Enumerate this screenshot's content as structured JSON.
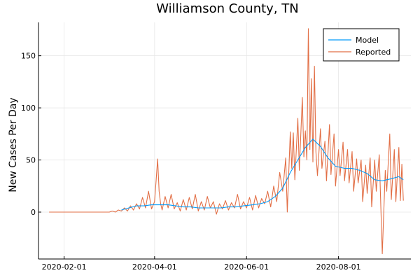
{
  "chart_data": {
    "type": "line",
    "title": "Williamson County, TN",
    "xlabel": "",
    "ylabel": "New Cases Per Day",
    "x_axis": "date",
    "xlim": [
      "2020-01-15",
      "2020-09-18"
    ],
    "ylim": [
      -45,
      182
    ],
    "x_ticks": [
      "2020-02-01",
      "2020-04-01",
      "2020-06-01",
      "2020-08-01"
    ],
    "y_ticks": [
      0,
      50,
      100,
      150
    ],
    "grid": true,
    "legend_position": "top-right",
    "colors": {
      "model": "#009AFA",
      "reported": "#E26F46"
    },
    "series": [
      {
        "name": "Model",
        "color": "#009AFA",
        "points": [
          [
            "2020-03-10",
            2
          ],
          [
            "2020-03-15",
            4
          ],
          [
            "2020-03-20",
            6
          ],
          [
            "2020-03-25",
            6
          ],
          [
            "2020-03-30",
            7
          ],
          [
            "2020-04-05",
            7
          ],
          [
            "2020-04-10",
            7
          ],
          [
            "2020-04-15",
            6
          ],
          [
            "2020-04-20",
            5
          ],
          [
            "2020-04-25",
            5
          ],
          [
            "2020-04-30",
            4
          ],
          [
            "2020-05-05",
            4
          ],
          [
            "2020-05-10",
            4
          ],
          [
            "2020-05-15",
            4
          ],
          [
            "2020-05-20",
            5
          ],
          [
            "2020-05-25",
            5
          ],
          [
            "2020-05-30",
            6
          ],
          [
            "2020-06-05",
            7
          ],
          [
            "2020-06-10",
            8
          ],
          [
            "2020-06-15",
            10
          ],
          [
            "2020-06-20",
            15
          ],
          [
            "2020-06-25",
            23
          ],
          [
            "2020-06-30",
            38
          ],
          [
            "2020-07-05",
            50
          ],
          [
            "2020-07-10",
            62
          ],
          [
            "2020-07-15",
            70
          ],
          [
            "2020-07-20",
            63
          ],
          [
            "2020-07-25",
            52
          ],
          [
            "2020-07-30",
            44
          ],
          [
            "2020-08-05",
            42
          ],
          [
            "2020-08-10",
            42
          ],
          [
            "2020-08-15",
            40
          ],
          [
            "2020-08-20",
            37
          ],
          [
            "2020-08-25",
            31
          ],
          [
            "2020-08-30",
            30
          ],
          [
            "2020-09-05",
            32
          ],
          [
            "2020-09-10",
            34
          ],
          [
            "2020-09-13",
            31
          ]
        ]
      },
      {
        "name": "Reported",
        "color": "#E26F46",
        "points": [
          [
            "2020-01-22",
            0
          ],
          [
            "2020-02-05",
            0
          ],
          [
            "2020-02-20",
            0
          ],
          [
            "2020-03-02",
            0
          ],
          [
            "2020-03-04",
            1
          ],
          [
            "2020-03-06",
            0
          ],
          [
            "2020-03-08",
            2
          ],
          [
            "2020-03-10",
            1
          ],
          [
            "2020-03-12",
            4
          ],
          [
            "2020-03-14",
            1
          ],
          [
            "2020-03-16",
            6
          ],
          [
            "2020-03-18",
            2
          ],
          [
            "2020-03-20",
            8
          ],
          [
            "2020-03-22",
            3
          ],
          [
            "2020-03-24",
            14
          ],
          [
            "2020-03-26",
            4
          ],
          [
            "2020-03-28",
            20
          ],
          [
            "2020-03-30",
            3
          ],
          [
            "2020-04-01",
            10
          ],
          [
            "2020-04-02",
            30
          ],
          [
            "2020-04-03",
            51
          ],
          [
            "2020-04-04",
            20
          ],
          [
            "2020-04-05",
            8
          ],
          [
            "2020-04-06",
            2
          ],
          [
            "2020-04-08",
            15
          ],
          [
            "2020-04-10",
            4
          ],
          [
            "2020-04-12",
            17
          ],
          [
            "2020-04-14",
            3
          ],
          [
            "2020-04-16",
            9
          ],
          [
            "2020-04-18",
            1
          ],
          [
            "2020-04-20",
            12
          ],
          [
            "2020-04-22",
            2
          ],
          [
            "2020-04-24",
            14
          ],
          [
            "2020-04-26",
            3
          ],
          [
            "2020-04-28",
            17
          ],
          [
            "2020-04-30",
            1
          ],
          [
            "2020-05-02",
            10
          ],
          [
            "2020-05-04",
            2
          ],
          [
            "2020-05-06",
            15
          ],
          [
            "2020-05-08",
            4
          ],
          [
            "2020-05-10",
            10
          ],
          [
            "2020-05-12",
            -2
          ],
          [
            "2020-05-14",
            8
          ],
          [
            "2020-05-16",
            3
          ],
          [
            "2020-05-18",
            11
          ],
          [
            "2020-05-20",
            2
          ],
          [
            "2020-05-22",
            9
          ],
          [
            "2020-05-24",
            4
          ],
          [
            "2020-05-26",
            17
          ],
          [
            "2020-05-28",
            3
          ],
          [
            "2020-05-30",
            10
          ],
          [
            "2020-06-01",
            4
          ],
          [
            "2020-06-03",
            14
          ],
          [
            "2020-06-05",
            2
          ],
          [
            "2020-06-07",
            16
          ],
          [
            "2020-06-09",
            4
          ],
          [
            "2020-06-11",
            13
          ],
          [
            "2020-06-13",
            8
          ],
          [
            "2020-06-15",
            20
          ],
          [
            "2020-06-17",
            5
          ],
          [
            "2020-06-19",
            25
          ],
          [
            "2020-06-21",
            10
          ],
          [
            "2020-06-23",
            38
          ],
          [
            "2020-06-25",
            20
          ],
          [
            "2020-06-27",
            52
          ],
          [
            "2020-06-28",
            0
          ],
          [
            "2020-06-30",
            77
          ],
          [
            "2020-07-01",
            42
          ],
          [
            "2020-07-02",
            76
          ],
          [
            "2020-07-03",
            31
          ],
          [
            "2020-07-05",
            90
          ],
          [
            "2020-07-06",
            40
          ],
          [
            "2020-07-08",
            110
          ],
          [
            "2020-07-09",
            53
          ],
          [
            "2020-07-10",
            78
          ],
          [
            "2020-07-11",
            50
          ],
          [
            "2020-07-12",
            176
          ],
          [
            "2020-07-13",
            60
          ],
          [
            "2020-07-14",
            128
          ],
          [
            "2020-07-15",
            48
          ],
          [
            "2020-07-16",
            140
          ],
          [
            "2020-07-17",
            58
          ],
          [
            "2020-07-18",
            35
          ],
          [
            "2020-07-20",
            80
          ],
          [
            "2020-07-21",
            42
          ],
          [
            "2020-07-23",
            68
          ],
          [
            "2020-07-24",
            30
          ],
          [
            "2020-07-26",
            84
          ],
          [
            "2020-07-27",
            36
          ],
          [
            "2020-07-29",
            75
          ],
          [
            "2020-07-30",
            25
          ],
          [
            "2020-08-01",
            60
          ],
          [
            "2020-08-02",
            35
          ],
          [
            "2020-08-04",
            67
          ],
          [
            "2020-08-05",
            30
          ],
          [
            "2020-08-07",
            60
          ],
          [
            "2020-08-08",
            28
          ],
          [
            "2020-08-10",
            58
          ],
          [
            "2020-08-11",
            20
          ],
          [
            "2020-08-13",
            51
          ],
          [
            "2020-08-14",
            28
          ],
          [
            "2020-08-16",
            50
          ],
          [
            "2020-08-17",
            10
          ],
          [
            "2020-08-19",
            45
          ],
          [
            "2020-08-20",
            18
          ],
          [
            "2020-08-22",
            52
          ],
          [
            "2020-08-23",
            5
          ],
          [
            "2020-08-25",
            50
          ],
          [
            "2020-08-26",
            20
          ],
          [
            "2020-08-28",
            55
          ],
          [
            "2020-08-30",
            -40
          ],
          [
            "2020-09-01",
            40
          ],
          [
            "2020-09-02",
            20
          ],
          [
            "2020-09-04",
            75
          ],
          [
            "2020-09-05",
            12
          ],
          [
            "2020-09-07",
            60
          ],
          [
            "2020-09-08",
            10
          ],
          [
            "2020-09-10",
            62
          ],
          [
            "2020-09-11",
            11
          ],
          [
            "2020-09-12",
            46
          ],
          [
            "2020-09-13",
            11
          ]
        ]
      }
    ]
  }
}
